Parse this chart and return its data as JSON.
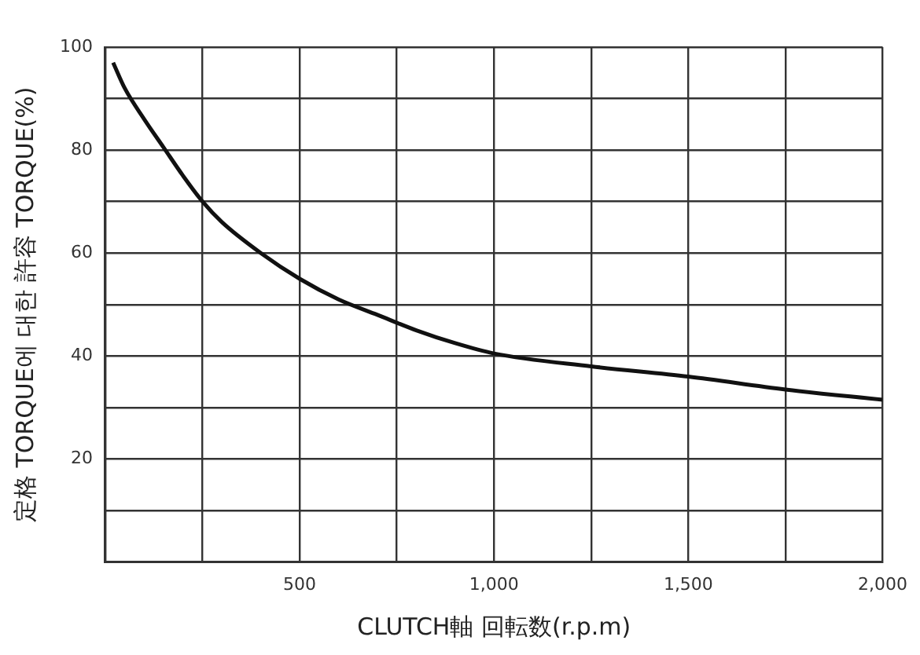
{
  "chart_data": {
    "type": "line",
    "xlabel": "CLUTCH軸 回転数(r.p.m)",
    "ylabel": "定格 TORQUE에 대한 許容 TORQUE(%)",
    "x": [
      20,
      50,
      100,
      150,
      200,
      250,
      300,
      400,
      500,
      600,
      700,
      800,
      900,
      1000,
      1250,
      1500,
      1750,
      2000
    ],
    "series": [
      {
        "color": "#111111",
        "values": [
          97,
          92,
          86,
          80.5,
          75,
          70,
          66,
          60,
          55,
          51,
          48,
          45,
          42.5,
          40.5,
          38,
          36,
          33.5,
          31.5
        ]
      }
    ],
    "xlim": [
      0,
      2000
    ],
    "xticks": [
      {
        "value": 0,
        "label": null
      },
      {
        "value": 250,
        "label": null
      },
      {
        "value": 500,
        "label": "500"
      },
      {
        "value": 750,
        "label": null
      },
      {
        "value": 1000,
        "label": "1,000"
      },
      {
        "value": 1250,
        "label": null
      },
      {
        "value": 1500,
        "label": "1,500"
      },
      {
        "value": 1750,
        "label": null
      },
      {
        "value": 2000,
        "label": "2,000"
      }
    ],
    "ylim": [
      0,
      100
    ],
    "yticks": [
      {
        "value": 0,
        "label": null
      },
      {
        "value": 10,
        "label": null
      },
      20,
      {
        "value": 30,
        "label": null
      },
      40,
      {
        "value": 50,
        "label": null
      },
      60,
      {
        "value": 70,
        "label": null
      },
      80,
      {
        "value": 90,
        "label": null
      },
      100
    ],
    "grid": true,
    "legend": false,
    "marker": "none",
    "line_style": "solid"
  }
}
